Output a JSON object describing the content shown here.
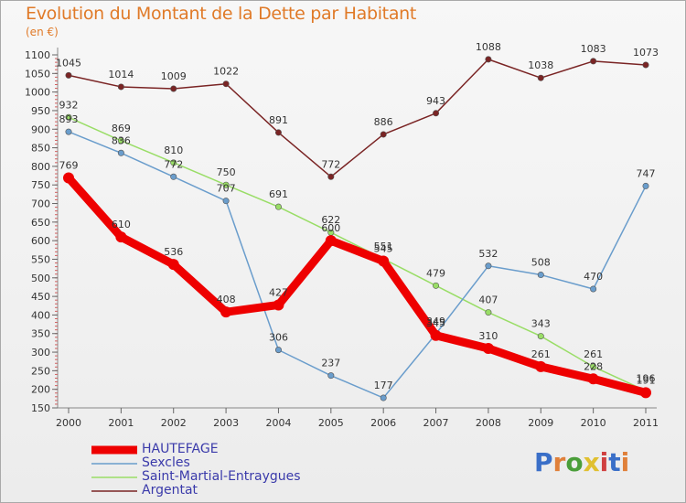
{
  "header": {
    "title": "Evolution du Montant de la Dette par Habitant",
    "unit": "(en €)"
  },
  "brand": {
    "logo_text": "Proxiti"
  },
  "chart_data": {
    "type": "line",
    "title": "Evolution du Montant de la Dette par Habitant",
    "subtitle": "(en €)",
    "x": [
      "2000",
      "2001",
      "2002",
      "2003",
      "2004",
      "2005",
      "2006",
      "2007",
      "2008",
      "2009",
      "2010",
      "2011"
    ],
    "ylim": [
      150,
      1100
    ],
    "yticks": [
      150,
      200,
      250,
      300,
      350,
      400,
      450,
      500,
      550,
      600,
      650,
      700,
      750,
      800,
      850,
      900,
      950,
      1000,
      1050,
      1100
    ],
    "grid": false,
    "legend_position": "bottom-left",
    "series": [
      {
        "name": "HAUTEFAGE",
        "color": "#ee0000",
        "values": [
          769,
          610,
          536,
          408,
          427,
          600,
          545,
          345,
          310,
          261,
          228,
          191
        ],
        "labels": [
          "769",
          "610",
          "536",
          "408",
          "427",
          "600",
          "545",
          "345",
          "310",
          "261",
          "228",
          "191"
        ]
      },
      {
        "name": "Sexcles",
        "color": "#6a9dcc",
        "values": [
          893,
          836,
          772,
          707,
          306,
          237,
          177,
          349,
          532,
          508,
          470,
          747
        ],
        "labels": [
          "893",
          "836",
          "772",
          "707",
          "306",
          "237",
          "177",
          "349",
          "532",
          "508",
          "470",
          "747"
        ]
      },
      {
        "name": "Saint-Martial-Entraygues",
        "color": "#99dd66",
        "values": [
          932,
          869,
          810,
          750,
          691,
          622,
          551,
          479,
          407,
          343,
          261,
          196
        ],
        "labels": [
          "932",
          "869",
          "810",
          "750",
          "691",
          "622",
          "551",
          "479",
          "407",
          "343",
          "261",
          "196"
        ]
      },
      {
        "name": "Argentat",
        "color": "#7a2424",
        "values": [
          1045,
          1014,
          1009,
          1022,
          891,
          772,
          886,
          943,
          1088,
          1038,
          1083,
          1073
        ],
        "labels": [
          "1045",
          "1014",
          "1009",
          "1022",
          "891",
          "772",
          "886",
          "943",
          "1088",
          "1038",
          "1083",
          "1073"
        ]
      }
    ]
  }
}
